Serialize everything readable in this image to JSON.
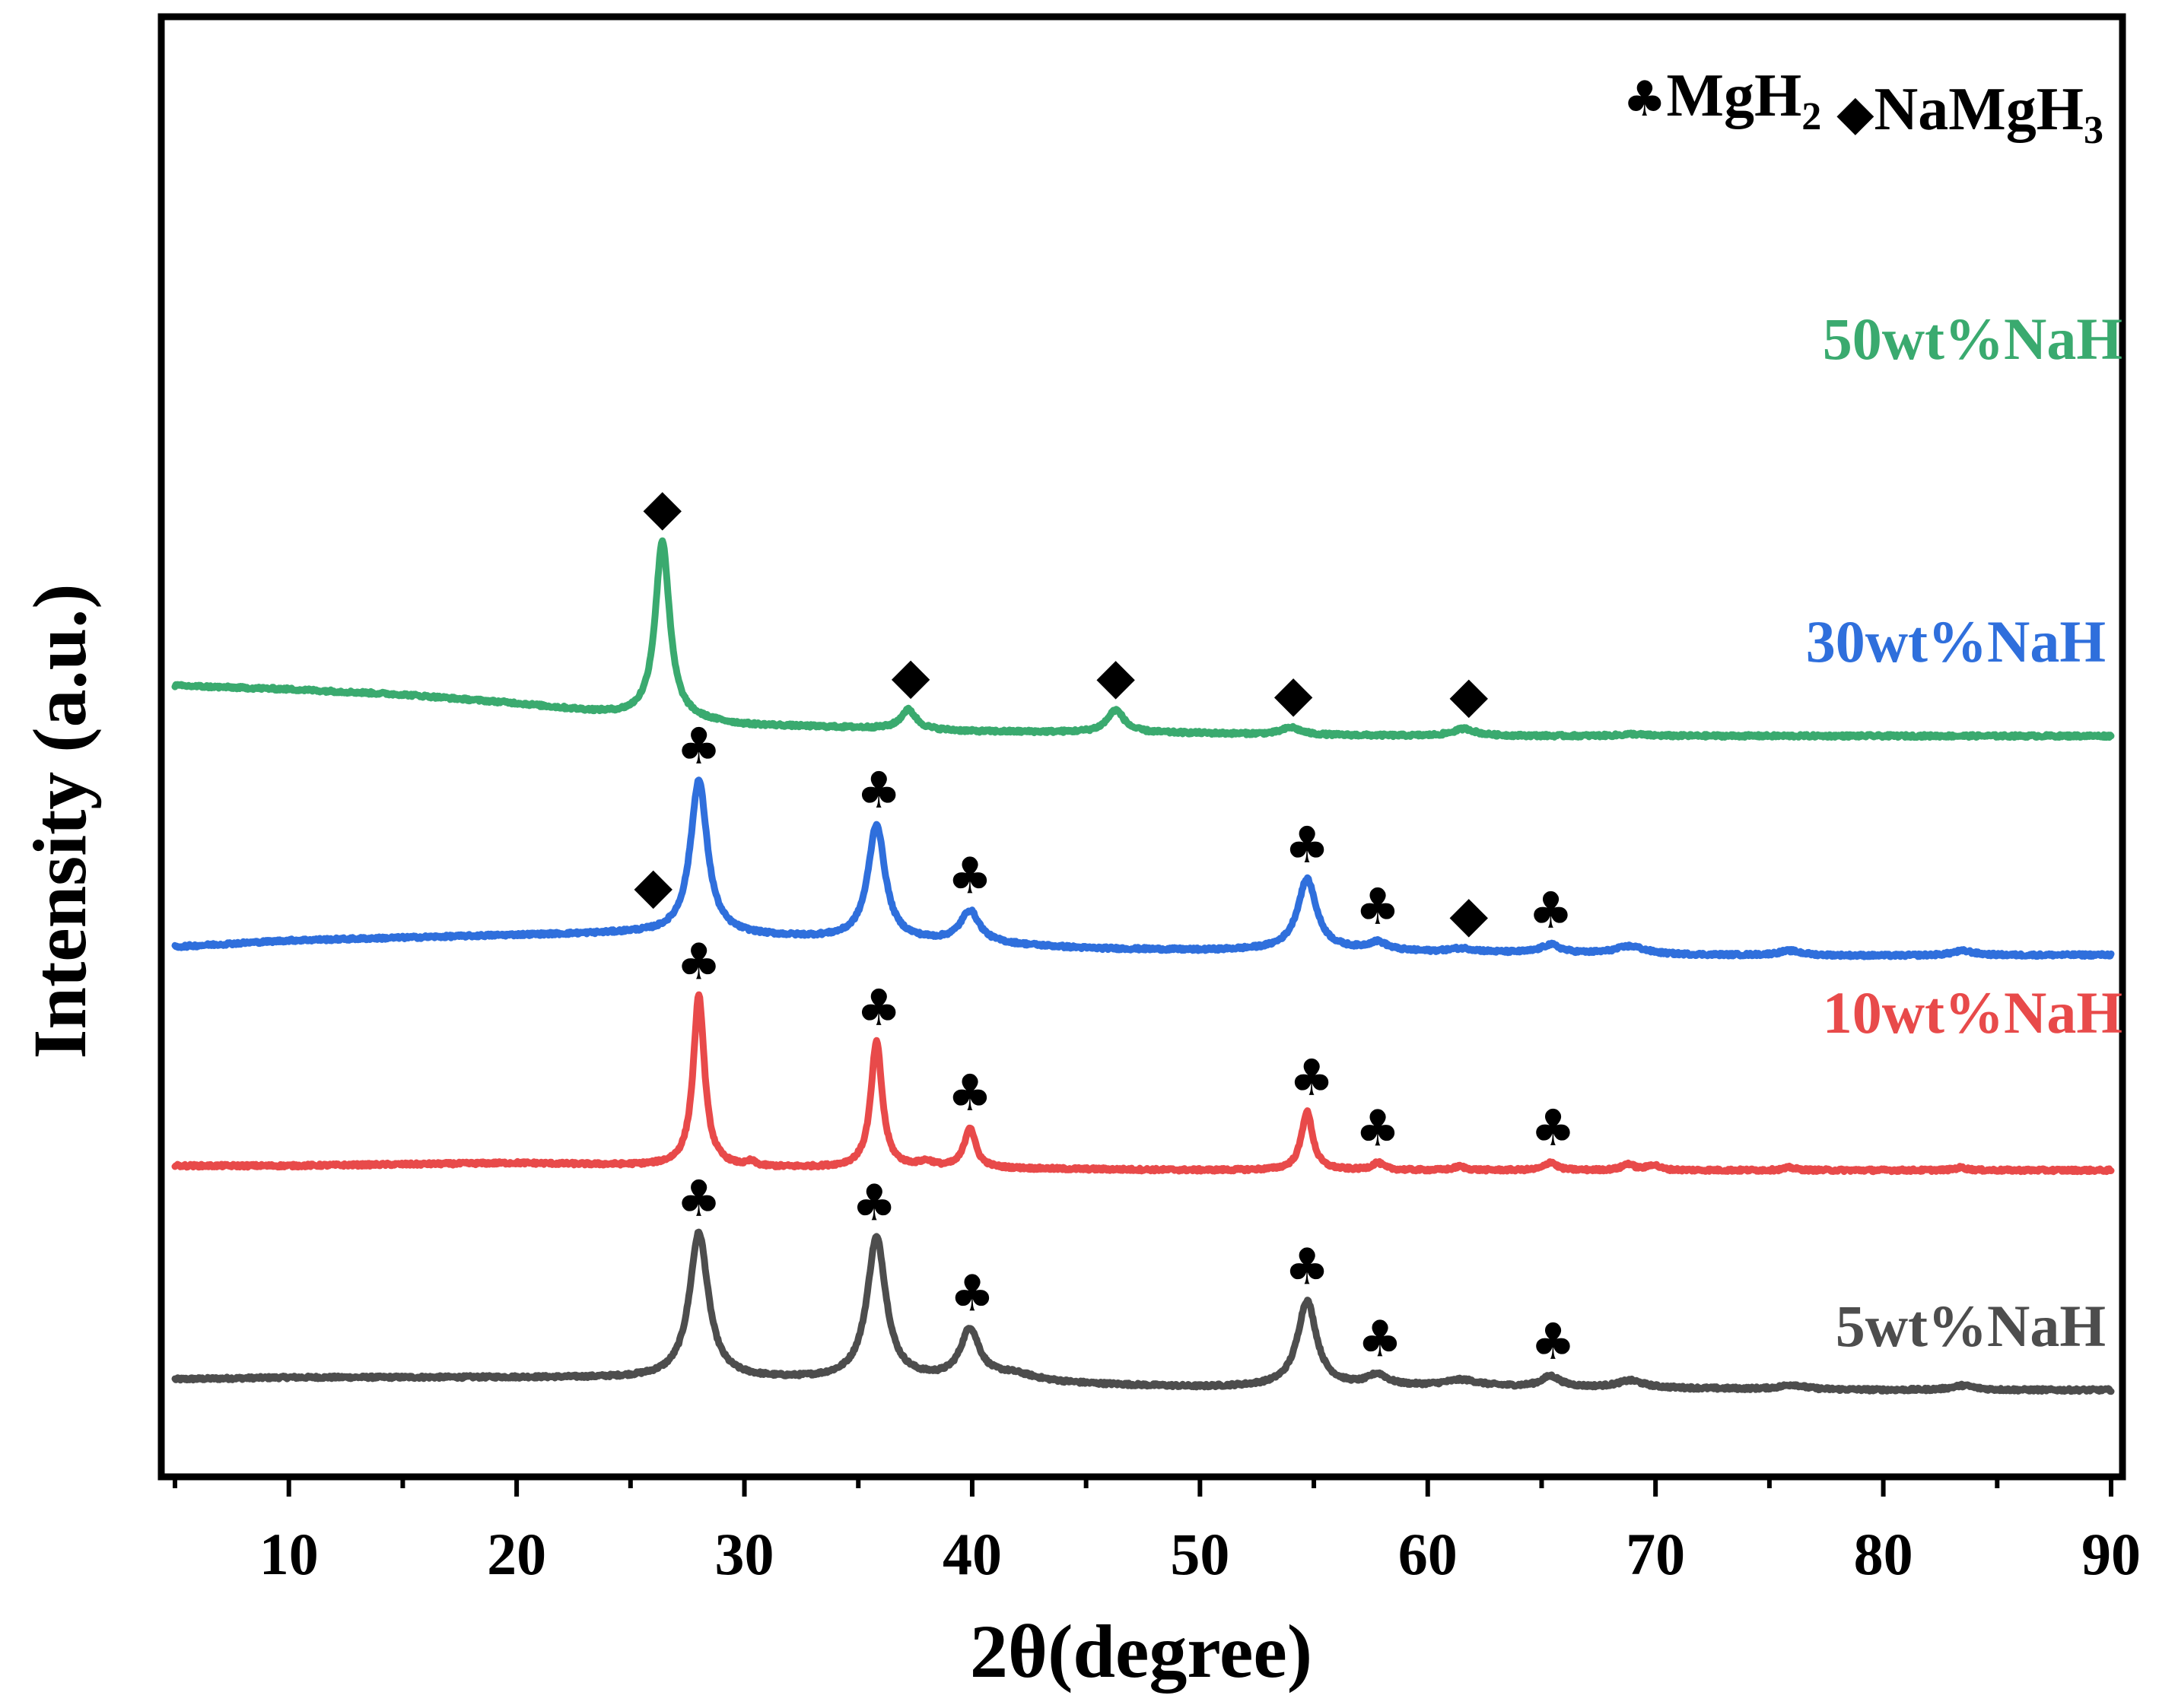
{
  "chart_data": {
    "type": "line",
    "title": "",
    "xlabel": "2θ(degree)",
    "ylabel": "Intensity (a.u.)",
    "xlim": [
      5,
      90
    ],
    "x_ticks": [
      10,
      20,
      30,
      40,
      50,
      60,
      70,
      80,
      90
    ],
    "y_ticks_shown": false,
    "legend": {
      "position": "top-right",
      "entries": [
        {
          "symbol": "♣",
          "base": "MgH",
          "sub": "2"
        },
        {
          "symbol": "◆",
          "base": "NaMgH",
          "sub": "3"
        }
      ]
    },
    "series": [
      {
        "name": "5wt%NaH",
        "color": "#4d4d4d",
        "offset": 0,
        "baseline": [
          [
            5,
            12
          ],
          [
            10,
            14
          ],
          [
            20,
            14
          ],
          [
            26,
            13
          ],
          [
            30,
            12
          ],
          [
            40,
            10
          ],
          [
            45,
            6
          ],
          [
            50,
            3
          ],
          [
            55,
            4
          ],
          [
            60,
            4
          ],
          [
            70,
            2
          ],
          [
            80,
            0
          ],
          [
            90,
            0
          ]
        ],
        "peaks": [
          {
            "x": 28.0,
            "h": 162,
            "w": 0.5
          },
          {
            "x": 35.8,
            "h": 158,
            "w": 0.5
          },
          {
            "x": 39.9,
            "h": 55,
            "w": 0.5
          },
          {
            "x": 41.8,
            "h": 8,
            "w": 1.2
          },
          {
            "x": 54.7,
            "h": 95,
            "w": 0.5
          },
          {
            "x": 57.8,
            "h": 12,
            "w": 0.5
          },
          {
            "x": 61.5,
            "h": 7,
            "w": 0.9
          },
          {
            "x": 65.4,
            "h": 12,
            "w": 0.5
          },
          {
            "x": 68.9,
            "h": 8,
            "w": 0.7
          },
          {
            "x": 76.0,
            "h": 5,
            "w": 0.6
          },
          {
            "x": 83.5,
            "h": 5,
            "w": 0.6
          }
        ]
      },
      {
        "name": "10wt%NaH",
        "color": "#e84a4a",
        "offset": 245,
        "baseline": [
          [
            5,
            5
          ],
          [
            10,
            5
          ],
          [
            20,
            8
          ],
          [
            30,
            3
          ],
          [
            40,
            2
          ],
          [
            50,
            0
          ],
          [
            60,
            0
          ],
          [
            70,
            0
          ],
          [
            80,
            0
          ],
          [
            90,
            0
          ]
        ],
        "peaks": [
          {
            "x": 28.0,
            "h": 190,
            "w": 0.3
          },
          {
            "x": 30.3,
            "h": 5,
            "w": 0.2
          },
          {
            "x": 35.8,
            "h": 140,
            "w": 0.3
          },
          {
            "x": 38.0,
            "h": 6,
            "w": 0.4
          },
          {
            "x": 39.9,
            "h": 45,
            "w": 0.3
          },
          {
            "x": 54.7,
            "h": 65,
            "w": 0.3
          },
          {
            "x": 57.8,
            "h": 8,
            "w": 0.3
          },
          {
            "x": 61.4,
            "h": 4,
            "w": 0.3
          },
          {
            "x": 65.4,
            "h": 9,
            "w": 0.3
          },
          {
            "x": 68.8,
            "h": 7,
            "w": 0.3
          },
          {
            "x": 69.9,
            "h": 6,
            "w": 0.3
          },
          {
            "x": 75.9,
            "h": 3,
            "w": 0.3
          },
          {
            "x": 83.4,
            "h": 3,
            "w": 0.3
          }
        ]
      },
      {
        "name": "30wt%NaH",
        "color": "#2f6fdc",
        "offset": 484,
        "baseline": [
          [
            5,
            10
          ],
          [
            10,
            17
          ],
          [
            20,
            23
          ],
          [
            25,
            25
          ],
          [
            30,
            22
          ],
          [
            35,
            18
          ],
          [
            40,
            14
          ],
          [
            45,
            8
          ],
          [
            50,
            6
          ],
          [
            55,
            7
          ],
          [
            60,
            4
          ],
          [
            65,
            3
          ],
          [
            70,
            1
          ],
          [
            80,
            0
          ],
          [
            90,
            1
          ]
        ],
        "peaks": [
          {
            "x": 28.0,
            "h": 172,
            "w": 0.45
          },
          {
            "x": 35.8,
            "h": 128,
            "w": 0.45
          },
          {
            "x": 39.9,
            "h": 35,
            "w": 0.5
          },
          {
            "x": 54.7,
            "h": 78,
            "w": 0.5
          },
          {
            "x": 57.8,
            "h": 9,
            "w": 0.5
          },
          {
            "x": 61.5,
            "h": 4,
            "w": 0.7
          },
          {
            "x": 65.4,
            "h": 9,
            "w": 0.5
          },
          {
            "x": 68.9,
            "h": 9,
            "w": 0.8
          },
          {
            "x": 75.9,
            "h": 5,
            "w": 0.6
          },
          {
            "x": 83.5,
            "h": 5,
            "w": 0.6
          }
        ]
      },
      {
        "name": "50wt%NaH",
        "color": "#3aaa6f",
        "offset": 729,
        "baseline": [
          [
            5,
            56
          ],
          [
            10,
            52
          ],
          [
            15,
            46
          ],
          [
            20,
            36
          ],
          [
            25,
            22
          ],
          [
            30,
            12
          ],
          [
            35,
            9
          ],
          [
            40,
            5
          ],
          [
            45,
            4
          ],
          [
            50,
            3
          ],
          [
            55,
            1
          ],
          [
            60,
            0
          ],
          [
            70,
            0
          ],
          [
            80,
            0
          ],
          [
            90,
            0
          ]
        ],
        "peaks": [
          {
            "x": 26.4,
            "h": 198,
            "w": 0.38
          },
          {
            "x": 37.2,
            "h": 22,
            "w": 0.4
          },
          {
            "x": 46.3,
            "h": 25,
            "w": 0.45
          },
          {
            "x": 54.0,
            "h": 8,
            "w": 0.5
          },
          {
            "x": 61.6,
            "h": 8,
            "w": 0.6
          },
          {
            "x": 69.0,
            "h": 2,
            "w": 0.6
          }
        ]
      }
    ],
    "annotations": [
      {
        "symbol": "♣",
        "series": 0,
        "x": 28.0
      },
      {
        "symbol": "♣",
        "series": 0,
        "x": 35.7
      },
      {
        "symbol": "♣",
        "series": 0,
        "x": 40.0
      },
      {
        "symbol": "♣",
        "series": 0,
        "x": 54.7
      },
      {
        "symbol": "♣",
        "series": 0,
        "x": 57.9
      },
      {
        "symbol": "♣",
        "series": 0,
        "x": 65.5
      },
      {
        "symbol": "♣",
        "series": 1,
        "x": 28.0
      },
      {
        "symbol": "♣",
        "series": 1,
        "x": 35.9
      },
      {
        "symbol": "♣",
        "series": 1,
        "x": 39.9
      },
      {
        "symbol": "♣",
        "series": 1,
        "x": 54.9
      },
      {
        "symbol": "♣",
        "series": 1,
        "x": 57.8
      },
      {
        "symbol": "♣",
        "series": 1,
        "x": 65.5
      },
      {
        "symbol": "♣",
        "series": 2,
        "x": 28.0
      },
      {
        "symbol": "♣",
        "series": 2,
        "x": 35.9
      },
      {
        "symbol": "♣",
        "series": 2,
        "x": 39.9
      },
      {
        "symbol": "♣",
        "series": 2,
        "x": 54.7
      },
      {
        "symbol": "♣",
        "series": 2,
        "x": 57.8
      },
      {
        "symbol": "♣",
        "series": 2,
        "x": 65.4
      },
      {
        "symbol": "◆",
        "series": 2,
        "x": 26.0
      },
      {
        "symbol": "◆",
        "series": 2,
        "x": 61.8
      },
      {
        "symbol": "◆",
        "series": 3,
        "x": 26.4
      },
      {
        "symbol": "◆",
        "series": 3,
        "x": 37.3
      },
      {
        "symbol": "◆",
        "series": 3,
        "x": 46.3
      },
      {
        "symbol": "◆",
        "series": 3,
        "x": 54.1
      },
      {
        "symbol": "◆",
        "series": 3,
        "x": 61.8
      }
    ]
  }
}
